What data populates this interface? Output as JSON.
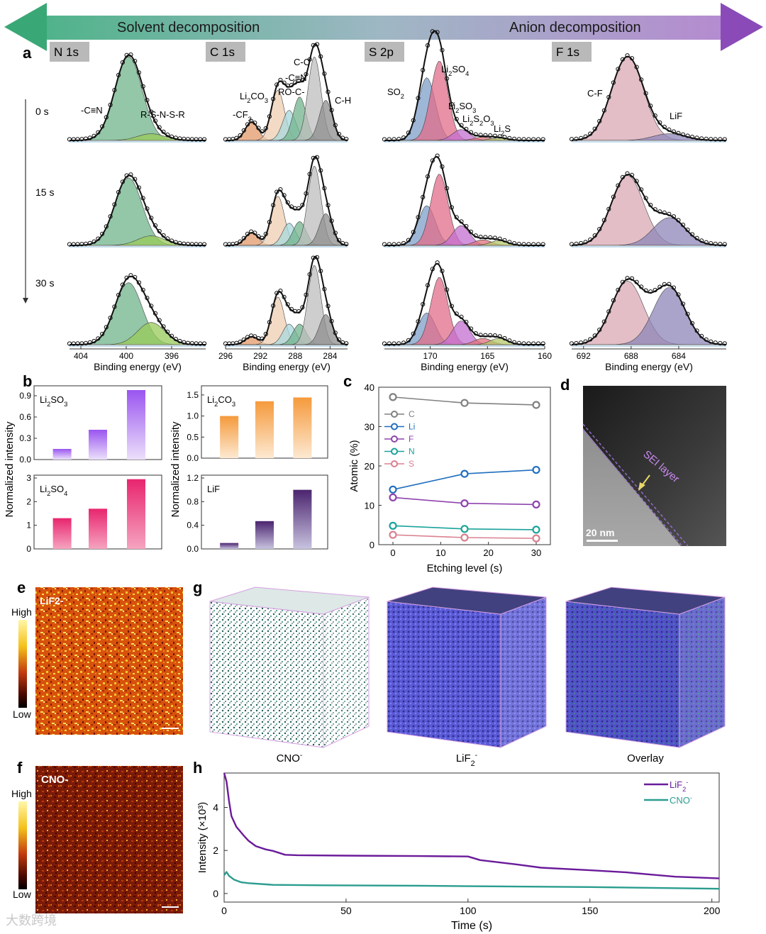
{
  "banner": {
    "left_label": "Solvent decomposition",
    "right_label": "Anion decomposition",
    "color_left": "#3aa876",
    "color_right": "#8a4bb8"
  },
  "panel_letters": {
    "a": "a",
    "b": "b",
    "c": "c",
    "d": "d",
    "e": "e",
    "f": "f",
    "g": "g",
    "h": "h"
  },
  "panel_a": {
    "time_labels": [
      "0 s",
      "15 s",
      "30 s"
    ],
    "xlabel": "Binding energy (eV)",
    "spectra": [
      {
        "title": "N 1s",
        "ticks": [
          "404",
          "400",
          "396"
        ],
        "tick_values": [
          404,
          400,
          396
        ],
        "range": [
          405,
          393
        ],
        "peaks": [
          {
            "name": "-C≡N",
            "center": 399.8,
            "color": "#6fb489",
            "amps": [
              1.0,
              0.85,
              0.78
            ]
          },
          {
            "name": "R-S-N-S-R",
            "center": 397.8,
            "color": "#98c95a",
            "amps": [
              0.08,
              0.12,
              0.28
            ]
          }
        ],
        "labels": [
          "-C≡N",
          "R-S-N-S-R"
        ]
      },
      {
        "title": "C 1s",
        "ticks": [
          "296",
          "292",
          "288",
          "284"
        ],
        "tick_values": [
          296,
          292,
          288,
          284
        ],
        "range": [
          296,
          282
        ],
        "peaks": [
          {
            "name": "-CF3",
            "center": 293.0,
            "color": "#e39a6a",
            "amps": [
              0.22,
              0.16,
              0.1
            ]
          },
          {
            "name": "Li2CO3",
            "center": 290.0,
            "color": "#efcdb2",
            "amps": [
              0.6,
              0.62,
              0.6
            ]
          },
          {
            "name": "-C≡N",
            "center": 288.7,
            "color": "#a7d8dc",
            "amps": [
              0.36,
              0.28,
              0.26
            ]
          },
          {
            "name": "RO-C-",
            "center": 287.5,
            "color": "#72b38c",
            "amps": [
              0.52,
              0.3,
              0.26
            ]
          },
          {
            "name": "C-C",
            "center": 285.8,
            "color": "#bdbdbd",
            "amps": [
              1.0,
              1.0,
              1.0
            ]
          },
          {
            "name": "C-H",
            "center": 284.5,
            "color": "#8d8d8d",
            "amps": [
              0.48,
              0.4,
              0.38
            ]
          }
        ],
        "labels": [
          "-CF3",
          "Li2CO3",
          "RO-C-",
          "-C≡N",
          "C-C",
          "C-H"
        ]
      },
      {
        "title": "S 2p",
        "ticks": [
          "170",
          "165",
          "160"
        ],
        "tick_values": [
          170,
          165,
          160
        ],
        "range": [
          174,
          160
        ],
        "peaks": [
          {
            "name": "SO2",
            "center": 170.3,
            "color": "#7d9fc9",
            "amps": [
              0.75,
              0.5,
              0.4
            ]
          },
          {
            "name": "Li2SO4",
            "center": 169.2,
            "color": "#e06c8a",
            "amps": [
              0.95,
              0.9,
              0.85
            ]
          },
          {
            "name": "Li2SO3",
            "center": 167.3,
            "color": "#c46fd0",
            "amps": [
              0.13,
              0.25,
              0.3
            ]
          },
          {
            "name": "Li2S2O3",
            "center": 165.4,
            "color": "#e0707a",
            "amps": [
              0.04,
              0.07,
              0.08
            ]
          },
          {
            "name": "Li2S",
            "center": 164.0,
            "color": "#b6c86a",
            "amps": [
              0.03,
              0.06,
              0.08
            ]
          }
        ],
        "labels": [
          "SO2",
          "Li2SO4",
          "Li2SO3",
          "Li2S2O3",
          "Li2S"
        ]
      },
      {
        "title": "F 1s",
        "ticks": [
          "692",
          "688",
          "684"
        ],
        "tick_values": [
          692,
          688,
          684
        ],
        "range": [
          693,
          680
        ],
        "peaks": [
          {
            "name": "C-F",
            "center": 688.3,
            "color": "#d9a8b4",
            "amps": [
              1.0,
              0.88,
              0.8
            ]
          },
          {
            "name": "LiF",
            "center": 684.8,
            "color": "#8e86b8",
            "amps": [
              0.08,
              0.35,
              0.72
            ]
          }
        ],
        "labels": [
          "C-F",
          "LiF"
        ]
      }
    ]
  },
  "panel_b": {
    "ylabel": "Normalized intensity",
    "charts": [
      {
        "label": "Li2SO3",
        "values": [
          0.15,
          0.42,
          0.98
        ],
        "ylim": [
          0,
          1.0
        ],
        "ticks": [
          "0.0",
          "0.3",
          "0.6",
          "0.9"
        ],
        "tick_values": [
          0,
          0.3,
          0.6,
          0.9
        ],
        "color_top": "#9a55f0",
        "color_bottom": "#ece0fb"
      },
      {
        "label": "Li2CO3",
        "values": [
          1.0,
          1.35,
          1.44
        ],
        "ylim": [
          0,
          1.65
        ],
        "ticks": [
          "0.0",
          "0.5",
          "1.0",
          "1.5"
        ],
        "tick_values": [
          0,
          0.5,
          1.0,
          1.5
        ],
        "color_top": "#f59a3c",
        "color_bottom": "#fde9d2"
      },
      {
        "label": "Li2SO4",
        "values": [
          1.3,
          1.7,
          2.95
        ],
        "ylim": [
          0,
          3.0
        ],
        "ticks": [
          "0",
          "1",
          "2",
          "3"
        ],
        "tick_values": [
          0,
          1,
          2,
          3
        ],
        "color_top": "#e8256e",
        "color_bottom": "#f6a4c0"
      },
      {
        "label": "LiF",
        "values": [
          0.1,
          0.47,
          1.0
        ],
        "ylim": [
          0,
          1.2
        ],
        "ticks": [
          "0.0",
          "0.4",
          "0.8",
          "1.2"
        ],
        "tick_values": [
          0,
          0.4,
          0.8,
          1.2
        ],
        "color_top": "#4b246f",
        "color_bottom": "#c8c3df"
      }
    ]
  },
  "chart_data": {
    "type": "line",
    "title": "",
    "xlabel": "Etching level (s)",
    "ylabel": "Atomic (%)",
    "x": [
      0,
      15,
      30
    ],
    "xticks": [
      0,
      10,
      20,
      30
    ],
    "ylim": [
      0,
      40
    ],
    "yticks": [
      0,
      10,
      20,
      30,
      40
    ],
    "legend_position": "top-left",
    "series": [
      {
        "name": "C",
        "values": [
          37.5,
          36.0,
          35.5
        ],
        "color": "#808080"
      },
      {
        "name": "Li",
        "values": [
          14.0,
          18.0,
          19.0
        ],
        "color": "#1f6fbf"
      },
      {
        "name": "F",
        "values": [
          12.0,
          10.5,
          10.2
        ],
        "color": "#8e44ad"
      },
      {
        "name": "N",
        "values": [
          4.8,
          4.0,
          3.8
        ],
        "color": "#1aa39a"
      },
      {
        "name": "S",
        "values": [
          2.5,
          1.8,
          1.6
        ],
        "color": "#d98090"
      }
    ]
  },
  "panel_d": {
    "annotation": "SEI layer",
    "scale_bar": "20 nm"
  },
  "panel_e": {
    "label": "LiF2-",
    "high": "High",
    "low": "Low"
  },
  "panel_f": {
    "label": "CNO-",
    "high": "High",
    "low": "Low"
  },
  "panel_g": {
    "captions": [
      "CNO-",
      "LiF2-",
      "Overlay"
    ]
  },
  "panel_h": {
    "type": "line",
    "xlabel": "Time (s)",
    "ylabel": "Intensity (×10³)",
    "xlim": [
      0,
      203
    ],
    "ylim": [
      -0.4,
      5.6
    ],
    "xticks": [
      0,
      50,
      100,
      150,
      200
    ],
    "yticks": [
      0,
      2,
      4
    ],
    "legend_position": "top-right",
    "series": [
      {
        "name": "LiF2-",
        "color": "#6a1b9a",
        "x": [
          0,
          1,
          2,
          3,
          5,
          8,
          10,
          13,
          17,
          20,
          25,
          30,
          50,
          80,
          100,
          105,
          120,
          130,
          150,
          165,
          175,
          185,
          190,
          203
        ],
        "y": [
          5.6,
          5.2,
          4.3,
          3.6,
          3.1,
          2.7,
          2.45,
          2.2,
          2.05,
          1.98,
          1.8,
          1.78,
          1.76,
          1.74,
          1.72,
          1.55,
          1.35,
          1.2,
          1.08,
          0.98,
          0.88,
          0.78,
          0.76,
          0.7
        ]
      },
      {
        "name": "CNO-",
        "color": "#2a9d8f",
        "x": [
          0,
          1,
          2,
          4,
          7,
          10,
          20,
          40,
          80,
          100,
          150,
          203
        ],
        "y": [
          0.85,
          1.0,
          0.82,
          0.65,
          0.52,
          0.48,
          0.4,
          0.38,
          0.36,
          0.34,
          0.3,
          0.22
        ]
      }
    ]
  },
  "watermark": "大数跨境"
}
